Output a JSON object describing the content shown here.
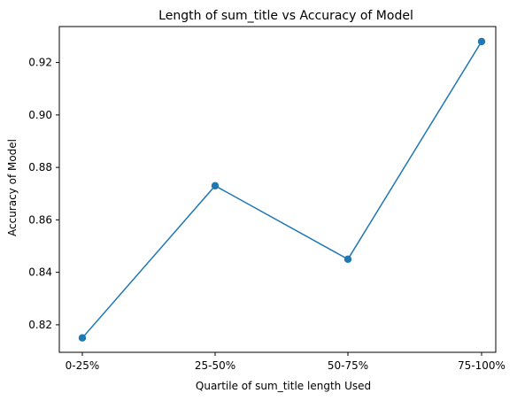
{
  "chart_data": {
    "type": "line",
    "title": "Length of sum_title vs Accuracy of Model",
    "xlabel": "Quartile of sum_title length Used",
    "ylabel": "Accuracy of Model",
    "categories": [
      "0-25%",
      "25-50%",
      "50-75%",
      "75-100%"
    ],
    "series": [
      {
        "values": [
          0.815,
          0.873,
          0.845,
          0.928
        ],
        "color": "#1f77b4",
        "marker": "circle"
      }
    ],
    "ylim": [
      0.8095,
      0.9337
    ],
    "yticks": [
      0.82,
      0.84,
      0.86,
      0.88,
      0.9,
      0.92
    ],
    "ytick_labels": [
      "0.82",
      "0.84",
      "0.86",
      "0.88",
      "0.90",
      "0.92"
    ],
    "grid": false,
    "legend": "none"
  }
}
